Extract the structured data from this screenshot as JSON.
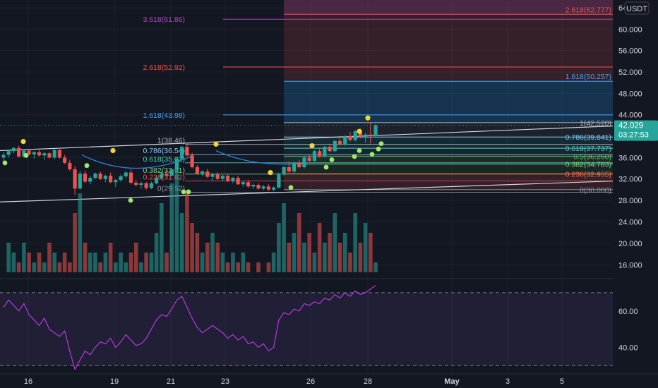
{
  "currency_label": "USDT",
  "price_badge": {
    "price": "42.029",
    "countdown": "03:27:53"
  },
  "price_axis": {
    "ticks": [
      "64.000",
      "60.000",
      "56.000",
      "52.000",
      "48.000",
      "44.000",
      "40.000",
      "36.000",
      "32.000",
      "28.000",
      "24.000",
      "20.000",
      "16.000"
    ]
  },
  "rsi_axis": {
    "ticks": [
      "60.00",
      "40.00"
    ]
  },
  "time_axis": {
    "ticks": [
      "16",
      "19",
      "21",
      "23",
      "26",
      "28",
      "May",
      "3",
      "5"
    ]
  },
  "colors": {
    "background": "#131722",
    "up": "#26a69a",
    "down": "#ef5350",
    "channel": "#d1d4dc",
    "rsi": "#b73adb",
    "dot_yellow": "#f5d433",
    "dot_green": "#9ee86b"
  },
  "fib_left": {
    "levels": [
      {
        "label": "1(38.46)",
        "value": 38.46,
        "color": "#b2b5be"
      },
      {
        "label": "0.786(36.54)",
        "value": 36.54,
        "color": "#81c7f5"
      },
      {
        "label": "0.618(35.02)",
        "value": 35.02,
        "color": "#4dd0c0"
      },
      {
        "label": "0.382(32.91)",
        "value": 32.91,
        "color": "#7fd17f"
      },
      {
        "label": "0.236(31.62)",
        "value": 31.62,
        "color": "#ef5350"
      },
      {
        "label": "0(29.52)",
        "value": 29.52,
        "color": "#9598a1"
      }
    ],
    "extensions": [
      {
        "label": "1.618(43.98)",
        "value": 43.98,
        "color": "#42a5f5"
      },
      {
        "label": "2.618(52.92)",
        "value": 52.92,
        "color": "#ef5350"
      },
      {
        "label": "3.618(61.86)",
        "value": 61.86,
        "color": "#ab47bc"
      }
    ]
  },
  "fib_right": {
    "levels": [
      {
        "label": "1(42.520)",
        "value": 42.52,
        "color": "#b2b5be"
      },
      {
        "label": "0.786(39.841)",
        "value": 39.841,
        "color": "#81c7f5"
      },
      {
        "label": "0.618(37.737)",
        "value": 37.737,
        "color": "#4dd0c0"
      },
      {
        "label": "0.5(36.260)",
        "value": 36.26,
        "color": "#66bb6a"
      },
      {
        "label": "0.382(34.783)",
        "value": 34.783,
        "color": "#7fd17f"
      },
      {
        "label": "0.236(32.955)",
        "value": 32.955,
        "color": "#ff7043"
      },
      {
        "label": "0(30.000)",
        "value": 30.0,
        "color": "#9598a1"
      }
    ],
    "extensions": [
      {
        "label": "1.618(50.257)",
        "value": 50.257,
        "color": "#42a5f5"
      },
      {
        "label": "2.618(62.777)",
        "value": 62.777,
        "color": "#ef5350"
      }
    ]
  },
  "chart_data": {
    "type": "candlestick",
    "title": "",
    "ylim_price": [
      26.6,
      66.0
    ],
    "ylim_rsi": [
      27,
      75
    ],
    "x_ticks": [
      "16",
      "19",
      "21",
      "23",
      "26",
      "28",
      "May",
      "3",
      "5"
    ],
    "candles": [
      [
        36.0,
        37.0,
        35.0,
        36.5
      ],
      [
        36.5,
        37.5,
        36.0,
        37.2
      ],
      [
        37.2,
        38.0,
        36.8,
        37.8
      ],
      [
        37.8,
        38.2,
        36.0,
        36.2
      ],
      [
        36.2,
        37.5,
        36.0,
        37.3
      ],
      [
        37.3,
        37.6,
        36.4,
        36.6
      ],
      [
        36.6,
        37.2,
        35.8,
        37.0
      ],
      [
        37.0,
        37.4,
        36.2,
        36.4
      ],
      [
        36.4,
        37.0,
        35.6,
        36.8
      ],
      [
        36.8,
        37.0,
        35.8,
        36.0
      ],
      [
        36.0,
        37.6,
        35.7,
        37.4
      ],
      [
        37.4,
        37.8,
        35.8,
        36.0
      ],
      [
        36.0,
        36.5,
        34.8,
        35.0
      ],
      [
        35.0,
        35.6,
        33.5,
        33.8
      ],
      [
        33.8,
        34.4,
        29.0,
        30.2
      ],
      [
        30.2,
        33.5,
        30.0,
        33.0
      ],
      [
        33.0,
        33.6,
        31.2,
        31.5
      ],
      [
        31.5,
        32.6,
        31.0,
        32.2
      ],
      [
        32.2,
        33.2,
        32.0,
        33.0
      ],
      [
        33.0,
        33.4,
        31.8,
        32.0
      ],
      [
        32.0,
        32.8,
        31.4,
        32.6
      ],
      [
        32.6,
        33.2,
        31.2,
        31.4
      ],
      [
        31.4,
        32.0,
        30.5,
        31.8
      ],
      [
        31.8,
        32.8,
        31.5,
        32.5
      ],
      [
        32.5,
        33.5,
        32.2,
        33.2
      ],
      [
        33.2,
        33.8,
        31.0,
        31.3
      ],
      [
        31.3,
        31.8,
        30.6,
        30.9
      ],
      [
        30.9,
        31.5,
        30.2,
        31.2
      ],
      [
        31.2,
        31.4,
        30.0,
        30.3
      ],
      [
        30.3,
        31.5,
        30.1,
        31.2
      ],
      [
        31.2,
        32.4,
        31.0,
        32.2
      ],
      [
        32.2,
        33.4,
        31.8,
        33.0
      ],
      [
        33.0,
        33.6,
        32.4,
        32.6
      ],
      [
        32.6,
        34.0,
        32.5,
        33.8
      ],
      [
        33.8,
        36.0,
        33.5,
        35.8
      ],
      [
        35.8,
        38.2,
        35.5,
        38.0
      ],
      [
        38.0,
        38.4,
        36.2,
        36.4
      ],
      [
        36.4,
        36.9,
        34.0,
        34.2
      ],
      [
        34.2,
        34.6,
        32.8,
        33.0
      ],
      [
        33.0,
        33.6,
        32.5,
        33.4
      ],
      [
        33.4,
        33.9,
        32.2,
        32.4
      ],
      [
        32.4,
        33.2,
        31.6,
        32.9
      ],
      [
        32.9,
        33.3,
        31.8,
        32.0
      ],
      [
        32.0,
        32.8,
        31.6,
        32.6
      ],
      [
        32.6,
        33.0,
        31.4,
        31.6
      ],
      [
        31.6,
        32.4,
        31.2,
        32.2
      ],
      [
        32.2,
        32.6,
        30.9,
        31.0
      ],
      [
        31.0,
        31.6,
        30.6,
        31.4
      ],
      [
        31.4,
        31.8,
        30.4,
        30.6
      ],
      [
        30.6,
        31.2,
        30.2,
        30.9
      ],
      [
        30.9,
        31.2,
        30.0,
        30.2
      ],
      [
        30.2,
        30.9,
        29.9,
        30.6
      ],
      [
        30.6,
        31.0,
        29.8,
        30.0
      ],
      [
        30.0,
        30.6,
        29.7,
        30.4
      ],
      [
        30.4,
        33.2,
        30.2,
        33.0
      ],
      [
        33.0,
        34.4,
        32.6,
        34.2
      ],
      [
        34.2,
        35.2,
        33.2,
        33.4
      ],
      [
        33.4,
        35.2,
        33.1,
        35.0
      ],
      [
        35.0,
        35.6,
        34.0,
        34.2
      ],
      [
        34.2,
        36.2,
        34.0,
        36.0
      ],
      [
        36.0,
        36.6,
        35.2,
        35.4
      ],
      [
        35.4,
        37.4,
        35.2,
        37.2
      ],
      [
        37.2,
        37.7,
        36.0,
        36.2
      ],
      [
        36.2,
        38.2,
        36.0,
        38.0
      ],
      [
        38.0,
        38.6,
        37.0,
        37.2
      ],
      [
        37.2,
        39.3,
        37.0,
        39.1
      ],
      [
        39.1,
        39.7,
        38.2,
        38.4
      ],
      [
        38.4,
        40.2,
        38.2,
        40.0
      ],
      [
        40.0,
        40.8,
        39.0,
        39.3
      ],
      [
        39.3,
        41.2,
        39.0,
        40.9
      ],
      [
        40.9,
        41.4,
        39.6,
        39.9
      ],
      [
        39.9,
        40.6,
        38.8,
        40.3
      ],
      [
        40.3,
        42.5,
        38.6,
        40.0
      ],
      [
        40.0,
        42.3,
        39.8,
        42.03
      ]
    ],
    "volume": [
      14,
      17,
      16,
      15,
      17,
      16,
      15,
      16,
      15,
      17,
      16,
      15,
      16,
      15,
      20,
      22,
      17,
      16,
      16,
      15,
      16,
      17,
      15,
      16,
      15,
      16,
      17,
      15,
      16,
      16,
      18,
      21,
      16,
      23,
      25,
      20,
      22,
      19,
      18,
      16,
      17,
      18,
      17,
      16,
      15,
      16,
      15,
      16,
      15,
      14,
      15,
      14,
      15,
      16,
      19,
      21,
      17,
      18,
      20,
      17,
      18,
      16,
      19,
      17,
      18,
      20,
      17,
      18,
      16,
      20,
      17,
      19,
      18,
      15
    ],
    "rsi": [
      62,
      66,
      63,
      60,
      64,
      58,
      55,
      52,
      56,
      50,
      48,
      46,
      49,
      38,
      28,
      33,
      38,
      36,
      40,
      43,
      42,
      45,
      40,
      43,
      47,
      44,
      41,
      42,
      45,
      50,
      55,
      58,
      57,
      61,
      66,
      68,
      62,
      56,
      51,
      48,
      50,
      52,
      50,
      48,
      45,
      47,
      44,
      46,
      42,
      43,
      40,
      42,
      38,
      40,
      55,
      59,
      58,
      61,
      60,
      64,
      63,
      65,
      64,
      67,
      66,
      69,
      67,
      70,
      68,
      71,
      69,
      70,
      72,
      74
    ],
    "rsi_levels": [
      70,
      30
    ]
  }
}
